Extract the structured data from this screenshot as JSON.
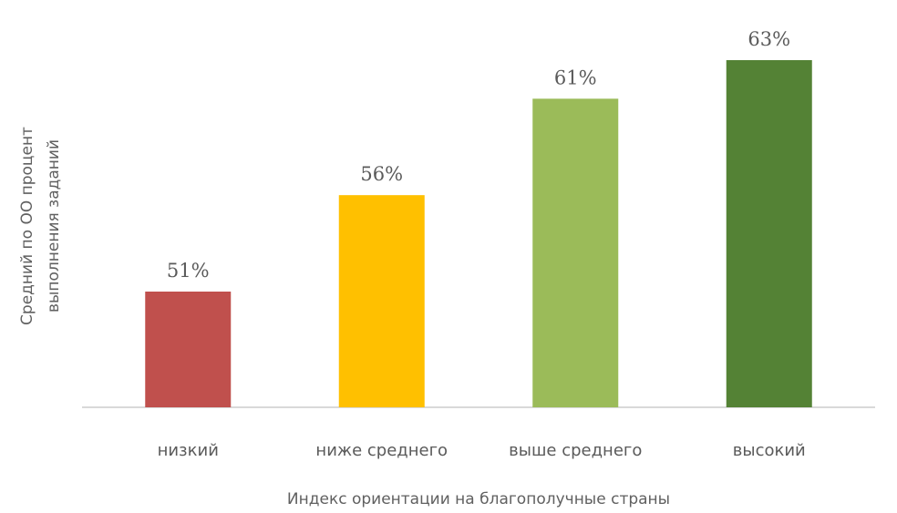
{
  "chart_data": {
    "type": "bar",
    "categories": [
      "низкий",
      "ниже среднего",
      "выше среднего",
      "высокий"
    ],
    "values": [
      51,
      56,
      61,
      63
    ],
    "value_labels": [
      "51%",
      "56%",
      "61%",
      "63%"
    ],
    "unit": "%",
    "colors": [
      "#c0504d",
      "#ffc000",
      "#9bbb59",
      "#548235"
    ],
    "xlabel": "Индекс ориентации на благополучные страны",
    "ylabel": [
      "Средний по ОО процент",
      "выполнения заданий"
    ],
    "ylim": [
      45,
      63
    ],
    "grid": false,
    "legend": "none"
  }
}
